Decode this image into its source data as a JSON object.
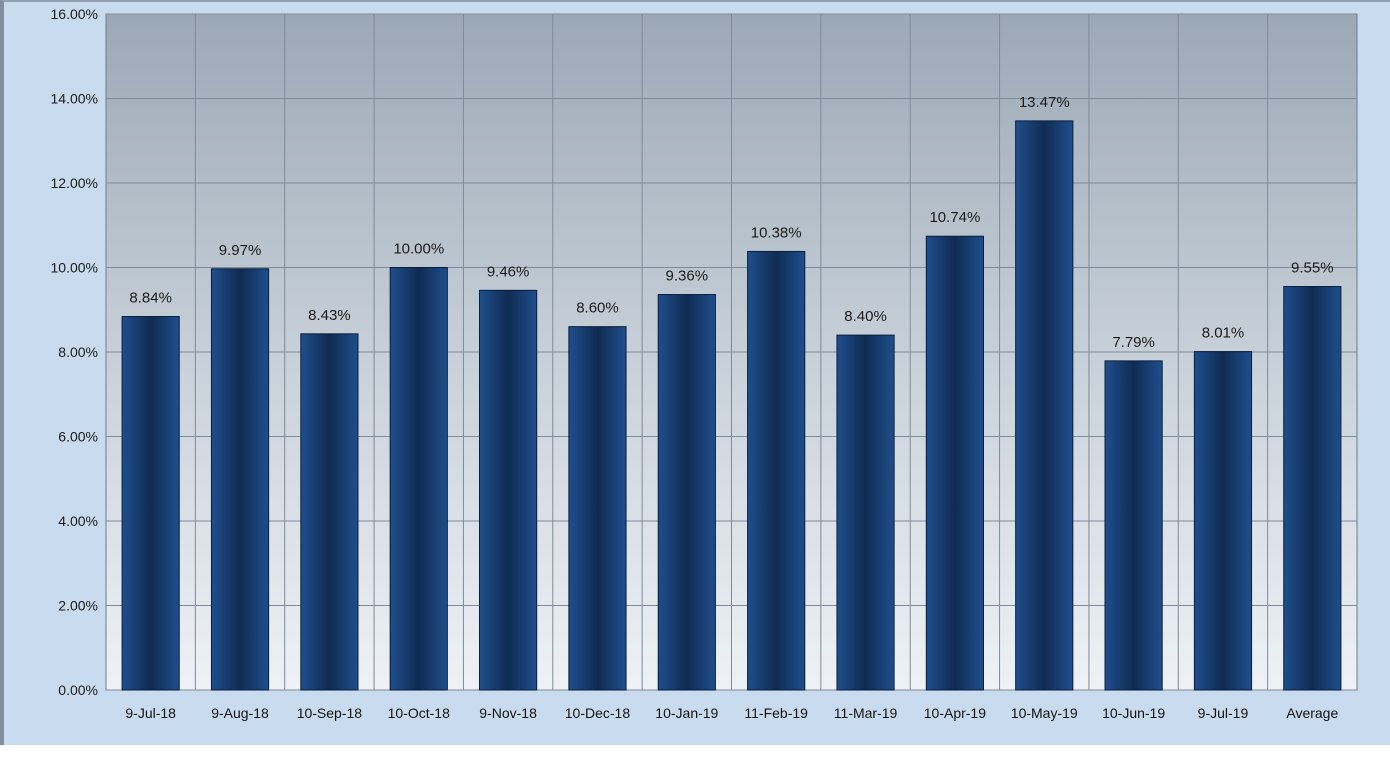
{
  "chart_data": {
    "type": "bar",
    "title": "",
    "xlabel": "",
    "ylabel": "",
    "categories": [
      "9-Jul-18",
      "9-Aug-18",
      "10-Sep-18",
      "10-Oct-18",
      "9-Nov-18",
      "10-Dec-18",
      "10-Jan-19",
      "11-Feb-19",
      "11-Mar-19",
      "10-Apr-19",
      "10-May-19",
      "10-Jun-19",
      "9-Jul-19",
      "Average"
    ],
    "values": [
      8.84,
      9.97,
      8.43,
      10.0,
      9.46,
      8.6,
      9.36,
      10.38,
      8.4,
      10.74,
      13.47,
      7.79,
      8.01,
      9.55
    ],
    "data_labels": [
      "8.84%",
      "9.97%",
      "8.43%",
      "10.00%",
      "9.46%",
      "8.60%",
      "9.36%",
      "10.38%",
      "8.40%",
      "10.74%",
      "13.47%",
      "7.79%",
      "8.01%",
      "9.55%"
    ],
    "ylim": [
      0,
      16
    ],
    "yticks": [
      0,
      2,
      4,
      6,
      8,
      10,
      12,
      14,
      16
    ],
    "ytick_labels": [
      "0.00%",
      "2.00%",
      "4.00%",
      "6.00%",
      "8.00%",
      "10.00%",
      "12.00%",
      "14.00%",
      "16.00%"
    ],
    "grid": true,
    "legend": "none",
    "colors": {
      "bar": "#1f4e8c",
      "bar_dark": "#0f2b52",
      "plot_bg_top": "#9ba8b6",
      "plot_bg_bottom": "#eef2f6",
      "frame_bg": "#c9dcef",
      "grid": "#7f8b98"
    }
  }
}
